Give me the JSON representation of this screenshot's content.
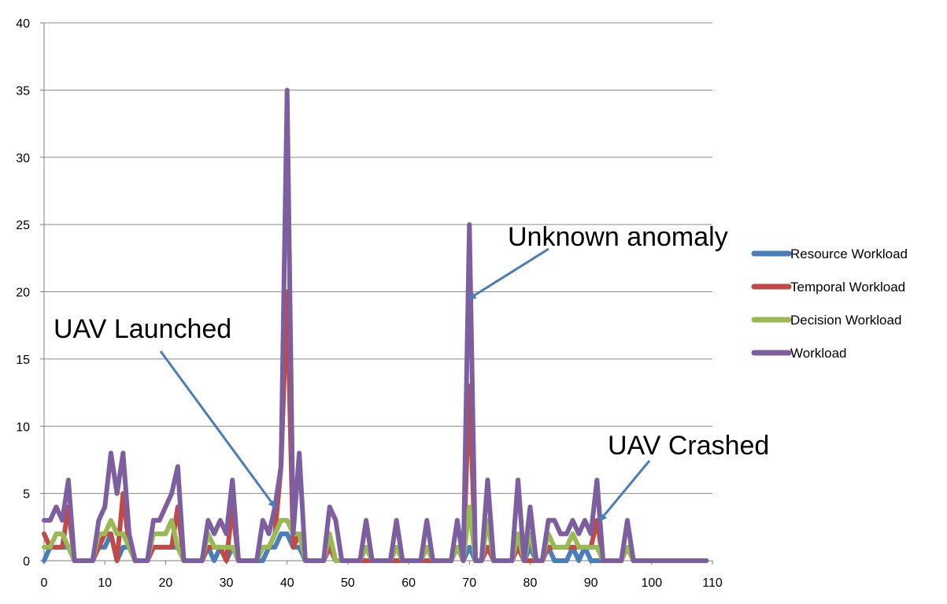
{
  "chart_data": {
    "type": "line",
    "x": [
      0,
      1,
      2,
      3,
      4,
      5,
      6,
      7,
      8,
      9,
      10,
      11,
      12,
      13,
      14,
      15,
      16,
      17,
      18,
      19,
      20,
      21,
      22,
      23,
      24,
      25,
      26,
      27,
      28,
      29,
      30,
      31,
      32,
      33,
      34,
      35,
      36,
      37,
      38,
      39,
      40,
      41,
      42,
      43,
      44,
      45,
      46,
      47,
      48,
      49,
      50,
      51,
      52,
      53,
      54,
      55,
      56,
      57,
      58,
      59,
      60,
      61,
      62,
      63,
      64,
      65,
      66,
      67,
      68,
      69,
      70,
      71,
      72,
      73,
      74,
      75,
      76,
      77,
      78,
      79,
      80,
      81,
      82,
      83,
      84,
      85,
      86,
      87,
      88,
      89,
      90,
      91,
      92,
      93,
      94,
      95,
      96,
      97,
      98,
      99,
      100,
      101,
      102,
      103,
      104,
      105,
      106,
      107,
      108,
      109
    ],
    "xlim": [
      0,
      110
    ],
    "ylim": [
      0,
      40
    ],
    "xticks": [
      0,
      10,
      20,
      30,
      40,
      50,
      60,
      70,
      80,
      90,
      100,
      110
    ],
    "yticks": [
      0,
      5,
      10,
      15,
      20,
      25,
      30,
      35,
      40
    ],
    "grid": "horizontal",
    "legend_position": "right",
    "series": [
      {
        "name": "Resource Workload",
        "color": "#4a7ebb",
        "values": [
          0,
          1,
          1,
          1,
          1,
          0,
          0,
          0,
          0,
          1,
          1,
          2,
          0,
          1,
          1,
          0,
          0,
          0,
          1,
          1,
          1,
          1,
          1,
          0,
          0,
          0,
          0,
          1,
          0,
          1,
          0,
          1,
          0,
          0,
          0,
          0,
          0,
          1,
          1,
          2,
          2,
          1,
          1,
          0,
          0,
          0,
          0,
          1,
          0,
          0,
          0,
          0,
          0,
          1,
          0,
          0,
          0,
          0,
          1,
          0,
          0,
          0,
          0,
          1,
          0,
          0,
          0,
          0,
          1,
          0,
          1,
          0,
          0,
          1,
          0,
          0,
          0,
          0,
          1,
          0,
          1,
          0,
          0,
          1,
          0,
          0,
          0,
          1,
          0,
          1,
          0,
          0,
          0,
          0,
          0,
          0,
          1,
          0,
          0,
          0,
          0,
          0,
          0,
          0,
          0,
          0,
          0,
          0,
          0,
          0
        ]
      },
      {
        "name": "Temporal Workload",
        "color": "#be4b48",
        "values": [
          2,
          1,
          1,
          1,
          4,
          0,
          0,
          0,
          0,
          1,
          2,
          2,
          0,
          5,
          1,
          0,
          0,
          0,
          1,
          1,
          1,
          1,
          4,
          0,
          0,
          0,
          0,
          1,
          1,
          1,
          0,
          4,
          0,
          0,
          0,
          0,
          1,
          1,
          2,
          7,
          20,
          1,
          2,
          0,
          0,
          0,
          0,
          1,
          0,
          0,
          0,
          0,
          0,
          0,
          0,
          0,
          0,
          0,
          0,
          0,
          0,
          0,
          0,
          0,
          0,
          0,
          0,
          0,
          1,
          0,
          13,
          0,
          0,
          1,
          0,
          0,
          0,
          0,
          1,
          0,
          0,
          0,
          0,
          1,
          1,
          1,
          1,
          1,
          1,
          1,
          1,
          3,
          0,
          0,
          0,
          0,
          1,
          0,
          0,
          0,
          0,
          0,
          0,
          0,
          0,
          0,
          0,
          0,
          0,
          0
        ]
      },
      {
        "name": "Decision Workload",
        "color": "#98b954",
        "values": [
          1,
          1,
          2,
          2,
          1,
          0,
          0,
          0,
          0,
          2,
          2,
          3,
          2,
          2,
          1,
          0,
          0,
          0,
          2,
          2,
          2,
          3,
          1,
          0,
          0,
          0,
          0,
          2,
          1,
          1,
          1,
          1,
          0,
          0,
          0,
          0,
          1,
          1,
          2,
          3,
          3,
          2,
          2,
          0,
          0,
          0,
          0,
          2,
          0,
          0,
          0,
          0,
          0,
          1,
          0,
          0,
          0,
          0,
          1,
          0,
          0,
          0,
          0,
          1,
          0,
          0,
          0,
          0,
          1,
          0,
          4,
          0,
          0,
          3,
          0,
          0,
          0,
          0,
          2,
          0,
          2,
          0,
          0,
          2,
          1,
          1,
          1,
          2,
          1,
          1,
          1,
          1,
          0,
          0,
          0,
          0,
          1,
          0,
          0,
          0,
          0,
          0,
          0,
          0,
          0,
          0,
          0,
          0,
          0,
          0
        ]
      },
      {
        "name": "Workload",
        "color": "#7d5fa0",
        "values": [
          3,
          3,
          4,
          3,
          6,
          0,
          0,
          0,
          0,
          3,
          4,
          8,
          5,
          8,
          2,
          0,
          0,
          0,
          3,
          3,
          4,
          5,
          7,
          0,
          0,
          0,
          0,
          3,
          2,
          3,
          2,
          6,
          0,
          0,
          0,
          0,
          3,
          2,
          4,
          7,
          35,
          2,
          8,
          0,
          0,
          0,
          0,
          4,
          3,
          0,
          0,
          0,
          0,
          3,
          0,
          0,
          0,
          0,
          3,
          0,
          0,
          0,
          0,
          3,
          0,
          0,
          0,
          0,
          3,
          0,
          25,
          0,
          0,
          6,
          0,
          0,
          0,
          0,
          6,
          0,
          4,
          0,
          0,
          3,
          3,
          2,
          2,
          3,
          2,
          3,
          2,
          6,
          0,
          0,
          0,
          0,
          3,
          0,
          0,
          0,
          0,
          0,
          0,
          0,
          0,
          0,
          0,
          0,
          0,
          0
        ]
      }
    ],
    "annotations": [
      {
        "text": "UAV Launched",
        "x": 38,
        "y": 4
      },
      {
        "text": "Unknown anomaly",
        "x": 70,
        "y": 19.5
      },
      {
        "text": "UAV Crashed",
        "x": 91.5,
        "y": 3
      }
    ]
  }
}
